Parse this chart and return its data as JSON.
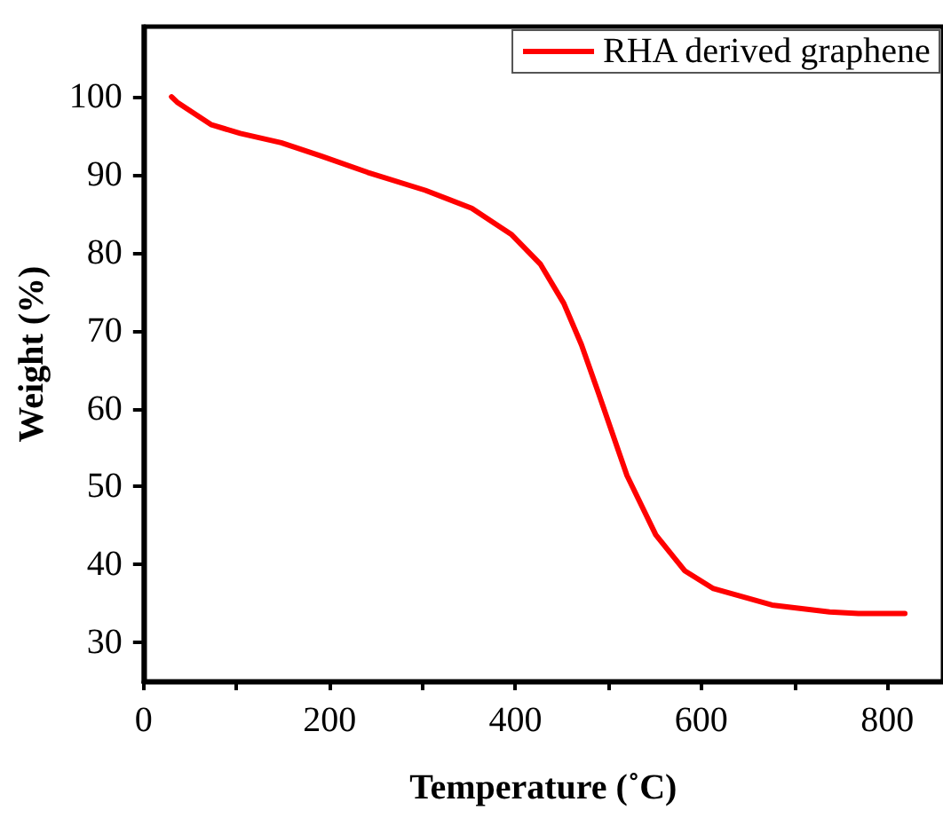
{
  "chart_data": {
    "type": "line",
    "xlabel": "Temperature (˚C)",
    "ylabel": "Weight (%)",
    "x": [
      30,
      36,
      73,
      104,
      148,
      191,
      241,
      303,
      353,
      396,
      427,
      452,
      471,
      489,
      520,
      551,
      582,
      613,
      676,
      738,
      769,
      819
    ],
    "series": [
      {
        "name": "RHA derived graphene",
        "color": "#ff0000",
        "values": [
          100,
          99.3,
          96.4,
          95.3,
          94.1,
          92.4,
          90.3,
          88,
          85.7,
          82.3,
          78.5,
          73.5,
          68.2,
          62.1,
          51.4,
          43.8,
          39.2,
          36.9,
          34.8,
          33.9,
          33.7,
          33.7
        ]
      }
    ],
    "xlim": [
      0,
      860
    ],
    "xticks": [
      0,
      {
        "value": 100,
        "label": null
      },
      200,
      {
        "value": 300,
        "label": null
      },
      400,
      {
        "value": 500,
        "label": null
      },
      600,
      {
        "value": 700,
        "label": null
      },
      800
    ],
    "ylim": [
      25,
      109
    ],
    "yticks": [
      30,
      40,
      50,
      60,
      70,
      80,
      90,
      100
    ],
    "grid": false,
    "legend": "top right",
    "marker": "none",
    "line_style": "solid"
  }
}
